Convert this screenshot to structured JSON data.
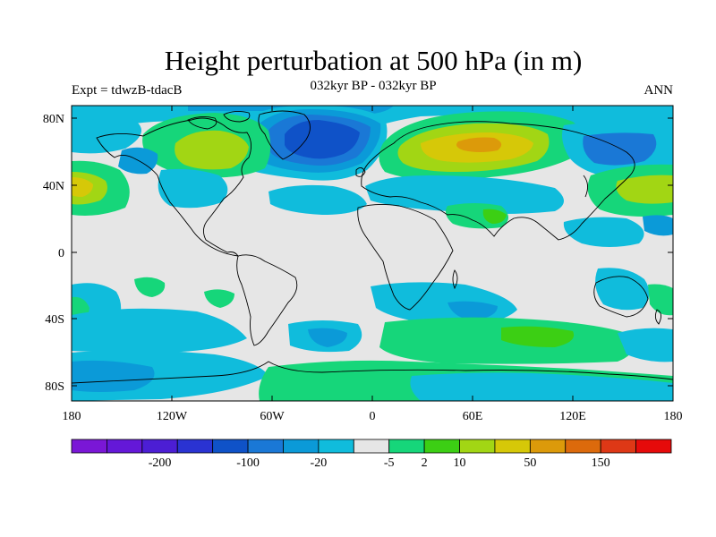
{
  "title": "Height perturbation at 500 hPa (in m)",
  "subtitle": "032kyr BP - 032kyr BP",
  "left_label": "Expt = tdwzB-tdacB",
  "right_label": "ANN",
  "lat_ticks": [
    "80N",
    "40N",
    "0",
    "40S",
    "80S"
  ],
  "lon_ticks": [
    "180",
    "120W",
    "60W",
    "0",
    "60E",
    "120E",
    "180"
  ],
  "colorbar": {
    "colors": [
      "#7a17d6",
      "#6418d8",
      "#4c1ed4",
      "#2a33d2",
      "#0f52c8",
      "#1a78d6",
      "#0b9ad8",
      "#10bcdc",
      "#e6e6e6",
      "#16d67a",
      "#3ccf14",
      "#a2d614",
      "#d6c808",
      "#dc9a0a",
      "#dc6a0c",
      "#de3816",
      "#e60a0a"
    ],
    "labels": [
      "-200",
      "-100",
      "-20",
      "-5",
      "2",
      "10",
      "50",
      "150"
    ]
  },
  "fill_colors": {
    "neutral": "#e6e6e6",
    "green": "#16d67a",
    "lime": "#a2d614",
    "yellow": "#d6c808",
    "lt_blue": "#10bcdc",
    "mid_blue": "#0b9ad8",
    "blue": "#1a78d6",
    "dk_blue": "#0f52c8",
    "bright_green": "#3ccf14",
    "orange": "#dc9a0a"
  }
}
